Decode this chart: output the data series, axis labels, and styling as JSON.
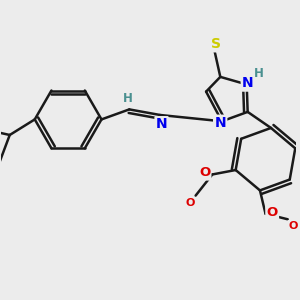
{
  "background_color": "#ececec",
  "atom_colors": {
    "C": "#1a1a1a",
    "N": "#0000ee",
    "S": "#cccc00",
    "O": "#dd0000",
    "H": "#4a9090"
  },
  "bond_color": "#1a1a1a",
  "bond_width": 1.8,
  "figsize": [
    3.0,
    3.0
  ],
  "dpi": 100
}
